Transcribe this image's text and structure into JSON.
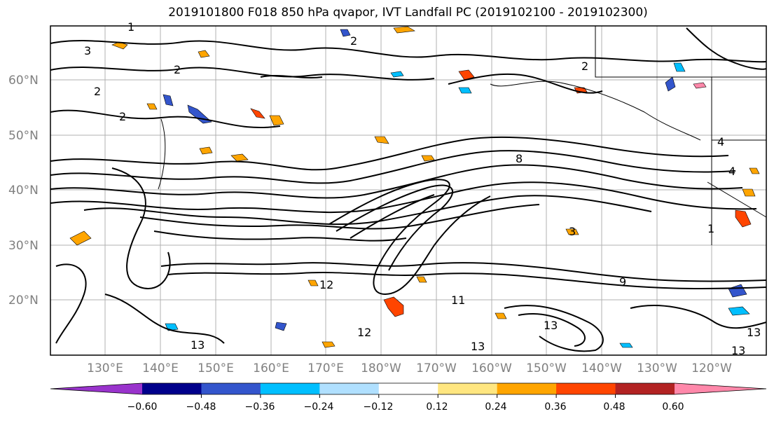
{
  "title": "2019101800 F018 850 hPa qvapor, IVT Landfall PC (2019102100 - 2019102300)",
  "lat_labels": [
    "60°N",
    "50°N",
    "40°N",
    "30°N",
    "20°N"
  ],
  "lon_labels": [
    "130°E",
    "140°E",
    "150°E",
    "160°E",
    "170°E",
    "180°W",
    "170°W",
    "160°W",
    "150°W",
    "140°W",
    "130°W",
    "120°W"
  ],
  "contour_labels": [
    "1",
    "2",
    "3",
    "4",
    "8",
    "9",
    "11",
    "12",
    "13"
  ],
  "colorbar": {
    "ticks": [
      "−0.60",
      "−0.48",
      "−0.36",
      "−0.24",
      "−0.12",
      "0.12",
      "0.24",
      "0.36",
      "0.48",
      "0.60"
    ],
    "colors": [
      "#9933cc",
      "#00008b",
      "#3355cc",
      "#00bfff",
      "#b0e0ff",
      "#ffffff",
      "#ffe680",
      "#ffa500",
      "#ff4500",
      "#b22222",
      "#ff88aa"
    ]
  },
  "colors": {
    "grid": "#b0b0b0",
    "contour": "#000000",
    "frame": "#000000",
    "label_gray": "#808080"
  }
}
